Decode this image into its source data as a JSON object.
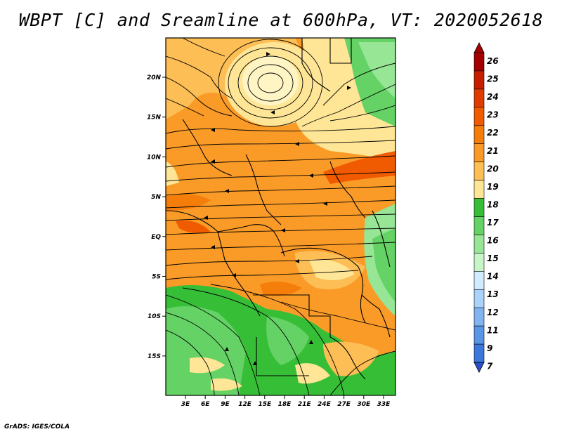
{
  "title": "WBPT [C] and Sreamline at 600hPa, VT: 2020052618",
  "credit": "GrADS: IGES/COLA",
  "map": {
    "lat_labels": [
      "20N",
      "15N",
      "10N",
      "5N",
      "EQ",
      "5S",
      "10S",
      "15S"
    ],
    "lon_labels": [
      "3E",
      "6E",
      "9E",
      "12E",
      "15E",
      "18E",
      "21E",
      "24E",
      "27E",
      "30E",
      "33E"
    ]
  },
  "colorbar": {
    "labels": [
      "26",
      "25",
      "24",
      "23",
      "22",
      "21",
      "20",
      "19",
      "18",
      "17",
      "16",
      "15",
      "14",
      "13",
      "12",
      "11",
      "9",
      "7"
    ],
    "colors": [
      "#a50000",
      "#c81e00",
      "#e13c00",
      "#f05a00",
      "#f57d0a",
      "#fa9b28",
      "#fcbe55",
      "#ffe696",
      "#37be37",
      "#64d264",
      "#96e696",
      "#c8f5c8",
      "#d2ebff",
      "#aad2fa",
      "#82b4f0",
      "#5a96e6",
      "#3c78dc",
      "#2850c8"
    ]
  }
}
